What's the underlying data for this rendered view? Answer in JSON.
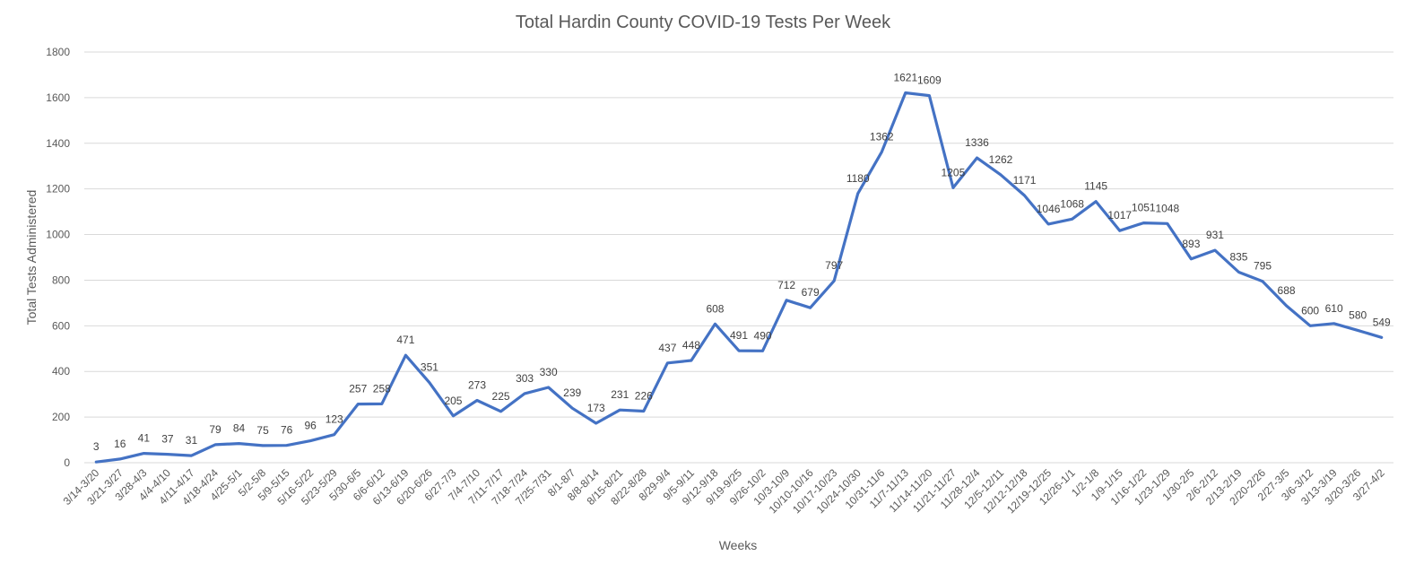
{
  "chart_data": {
    "type": "line",
    "title": "Total Hardin County COVID-19 Tests Per Week",
    "xlabel": "Weeks",
    "ylabel": "Total Tests Administered",
    "ylim": [
      0,
      1800
    ],
    "yticks": [
      0,
      200,
      400,
      600,
      800,
      1000,
      1200,
      1400,
      1600,
      1800
    ],
    "grid": true,
    "legend": "none",
    "line_color": "#4472c4",
    "categories": [
      "3/14-3/20",
      "3/21-3/27",
      "3/28-4/3",
      "4/4-4/10",
      "4/11-4/17",
      "4/18-4/24",
      "4/25-5/1",
      "5/2-5/8",
      "5/9-5/15",
      "5/16-5/22",
      "5/23-5/29",
      "5/30-6/5",
      "6/6-6/12",
      "6/13-6/19",
      "6/20-6/26",
      "6/27-7/3",
      "7/4-7/10",
      "7/11-7/17",
      "7/18-7/24",
      "7/25-7/31",
      "8/1-8/7",
      "8/8-8/14",
      "8/15-8/21",
      "8/22-8/28",
      "8/29-9/4",
      "9/5-9/11",
      "9/12-9/18",
      "9/19-9/25",
      "9/26-10/2",
      "10/3-10/9",
      "10/10-10/16",
      "10/17-10/23",
      "10/24-10/30",
      "10/31-11/6",
      "11/7-11/13",
      "11/14-11/20",
      "11/21-11/27",
      "11/28-12/4",
      "12/5-12/11",
      "12/12-12/18",
      "12/19-12/25",
      "12/26-1/1",
      "1/2-1/8",
      "1/9-1/15",
      "1/16-1/22",
      "1/23-1/29",
      "1/30-2/5",
      "2/6-2/12",
      "2/13-2/19",
      "2/20-2/26",
      "2/27-3/5",
      "3/6-3/12",
      "3/13-3/19",
      "3/20-3/26",
      "3/27-4/2"
    ],
    "series": [
      {
        "values": [
          3,
          16,
          41,
          37,
          31,
          79,
          84,
          75,
          76,
          96,
          123,
          257,
          258,
          471,
          351,
          205,
          273,
          225,
          303,
          330,
          239,
          173,
          231,
          226,
          437,
          448,
          608,
          491,
          490,
          712,
          679,
          797,
          1180,
          1362,
          1621,
          1609,
          1205,
          1336,
          1262,
          1171,
          1046,
          1068,
          1145,
          1017,
          1051,
          1048,
          893,
          931,
          835,
          795,
          688,
          600,
          610,
          580,
          549
        ]
      }
    ]
  }
}
